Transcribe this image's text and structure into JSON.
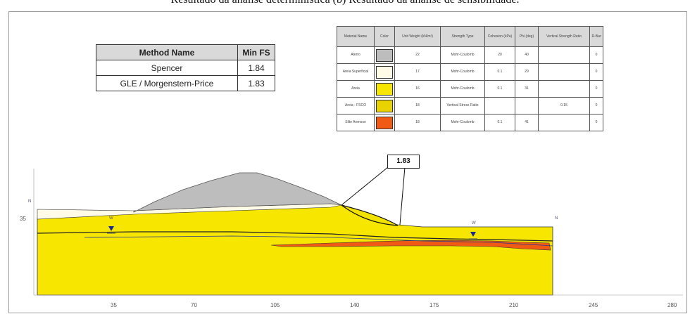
{
  "caption": "Resultado da análise determinística (b) Resultado da análise de sensibilidade.",
  "method_table": {
    "headers": [
      "Method Name",
      "Min FS"
    ],
    "rows": [
      {
        "method": "Spencer",
        "fs": "1.84"
      },
      {
        "method": "GLE / Morgenstern-Price",
        "fs": "1.83"
      }
    ]
  },
  "material_table": {
    "headers": [
      "Material Name",
      "Color",
      "Unit Weight (kN/m³)",
      "Strength Type",
      "Cohesion (kPa)",
      "Phi (deg)",
      "Vertical Strength Ratio",
      "R-Bar"
    ],
    "rows": [
      {
        "name": "Aterro",
        "color": "#bdbdbd",
        "unit_weight": "22",
        "strength": "Mohr-Coulomb",
        "cohesion": "20",
        "phi": "40",
        "ratio": "",
        "rbar": "0"
      },
      {
        "name": "Areia Superficial",
        "color": "#fffbe6",
        "unit_weight": "17",
        "strength": "Mohr-Coulomb",
        "cohesion": "0.1",
        "phi": "29",
        "ratio": "",
        "rbar": "0"
      },
      {
        "name": "Areia",
        "color": "#f7e600",
        "unit_weight": "16",
        "strength": "Mohr-Coulomb",
        "cohesion": "0.1",
        "phi": "31",
        "ratio": "",
        "rbar": "0"
      },
      {
        "name": "Areia - FSCO",
        "color": "#e8d200",
        "unit_weight": "18",
        "strength": "Vertical Stress Ratio",
        "cohesion": "",
        "phi": "",
        "ratio": "0.15",
        "rbar": "0"
      },
      {
        "name": "Silte Arenoso",
        "color": "#f05a14",
        "unit_weight": "18",
        "strength": "Mohr-Coulomb",
        "cohesion": "0.1",
        "phi": "41",
        "ratio": "",
        "rbar": "0"
      }
    ]
  },
  "critical_fs": "1.83",
  "axis": {
    "x_ticks": [
      "35",
      "70",
      "105",
      "140",
      "175",
      "210",
      "245",
      "280"
    ],
    "y_tick": "35"
  },
  "colors": {
    "fill": "#bdbdbd",
    "sand": "#f7e600",
    "surface_sand": "#fffbe6",
    "silt": "#f05a14",
    "water_marker": "#1a2a8a"
  }
}
